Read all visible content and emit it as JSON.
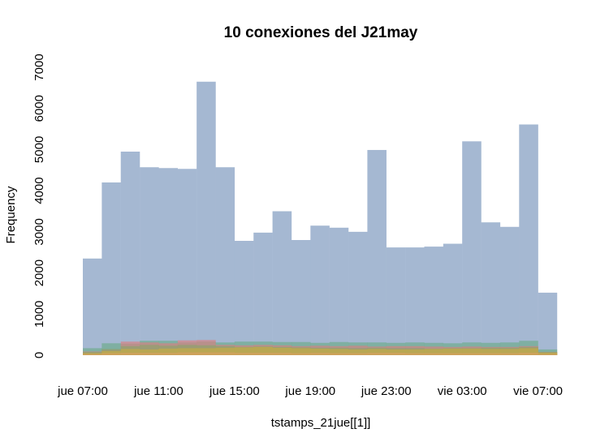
{
  "chart_data": {
    "type": "histogram",
    "title": "10 conexiones del J21may",
    "xlabel": "tstamps_21jue[[1]]",
    "ylabel": "Frequency",
    "ylim": [
      0,
      7000
    ],
    "y_ticks": [
      "0",
      "1000",
      "2000",
      "3000",
      "4000",
      "5000",
      "6000",
      "7000"
    ],
    "x_ticks": [
      "jue 07:00",
      "jue 11:00",
      "jue 15:00",
      "jue 19:00",
      "jue 23:00",
      "vie 03:00",
      "vie 07:00"
    ],
    "x_range": [
      "jue 07:00",
      "vie 07:00"
    ],
    "bin_width_hours": 1,
    "x_start": "jue 07:00",
    "grid": false,
    "series": [
      {
        "color": "#a5b8d2",
        "values": [
          2350,
          4200,
          4950,
          4570,
          4550,
          4530,
          6650,
          4570,
          2780,
          2980,
          3500,
          2800,
          3150,
          3100,
          3000,
          4990,
          2620,
          2620,
          2640,
          2710,
          5200,
          3230,
          3120,
          5610,
          1520
        ]
      },
      {
        "color": "#6aaa88",
        "values": [
          170,
          290,
          280,
          350,
          350,
          310,
          330,
          310,
          330,
          330,
          320,
          320,
          300,
          320,
          310,
          310,
          300,
          310,
          300,
          290,
          310,
          300,
          310,
          350,
          140
        ]
      },
      {
        "color": "#d98080",
        "values": [
          90,
          130,
          330,
          310,
          290,
          360,
          370,
          250,
          240,
          250,
          240,
          220,
          230,
          220,
          230,
          210,
          220,
          220,
          210,
          200,
          210,
          200,
          200,
          220,
          80
        ]
      },
      {
        "color": "#8aa36a",
        "values": [
          80,
          150,
          220,
          250,
          230,
          250,
          240,
          220,
          200,
          210,
          200,
          190,
          180,
          180,
          170,
          180,
          170,
          170,
          160,
          170,
          170,
          180,
          180,
          200,
          80
        ]
      },
      {
        "color": "#c8ad40",
        "values": [
          50,
          100,
          150,
          140,
          160,
          170,
          170,
          180,
          190,
          200,
          180,
          170,
          160,
          150,
          140,
          150,
          140,
          140,
          150,
          160,
          160,
          150,
          150,
          170,
          60
        ]
      },
      {
        "color": "#d8a060",
        "values": [
          30,
          50,
          60,
          60,
          60,
          70,
          70,
          70,
          60,
          60,
          60,
          50,
          60,
          50,
          50,
          60,
          60,
          50,
          50,
          50,
          50,
          50,
          50,
          60,
          30
        ]
      }
    ]
  }
}
